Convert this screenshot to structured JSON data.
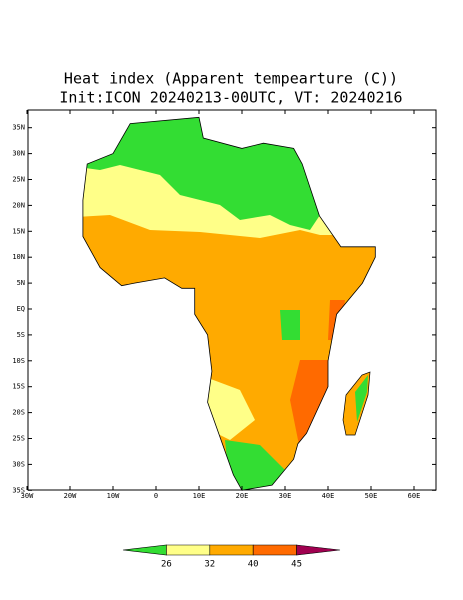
{
  "title": "Heat index (Apparent tempearture (C))",
  "subtitle": "Init:ICON 20240213-00UTC, VT: 20240216",
  "latticks": [
    {
      "value": 35,
      "label": "35N"
    },
    {
      "value": 30,
      "label": "30N"
    },
    {
      "value": 25,
      "label": "25N"
    },
    {
      "value": 20,
      "label": "20N"
    },
    {
      "value": 15,
      "label": "15N"
    },
    {
      "value": 10,
      "label": "10N"
    },
    {
      "value": 5,
      "label": "5N"
    },
    {
      "value": 0,
      "label": "EQ"
    },
    {
      "value": -5,
      "label": "5S"
    },
    {
      "value": -10,
      "label": "10S"
    },
    {
      "value": -15,
      "label": "15S"
    },
    {
      "value": -20,
      "label": "20S"
    },
    {
      "value": -25,
      "label": "25S"
    },
    {
      "value": -30,
      "label": "30S"
    },
    {
      "value": -35,
      "label": "35S"
    }
  ],
  "lonticks": [
    {
      "value": -30,
      "label": "30W"
    },
    {
      "value": -20,
      "label": "20W"
    },
    {
      "value": -10,
      "label": "10W"
    },
    0,
    {
      "value": 10,
      "label": "10E"
    },
    {
      "value": 20,
      "label": "20E"
    },
    {
      "value": 30,
      "label": "30E"
    },
    {
      "value": 40,
      "label": "40E"
    },
    {
      "value": 50,
      "label": "50E"
    },
    {
      "value": 60,
      "label": "60E"
    }
  ],
  "colorbar": {
    "levels": [
      26,
      32,
      40,
      45
    ],
    "colors": [
      "#33dd33",
      "#ffff88",
      "#ffaa00",
      "#ff6a00",
      "#a00050"
    ]
  }
}
